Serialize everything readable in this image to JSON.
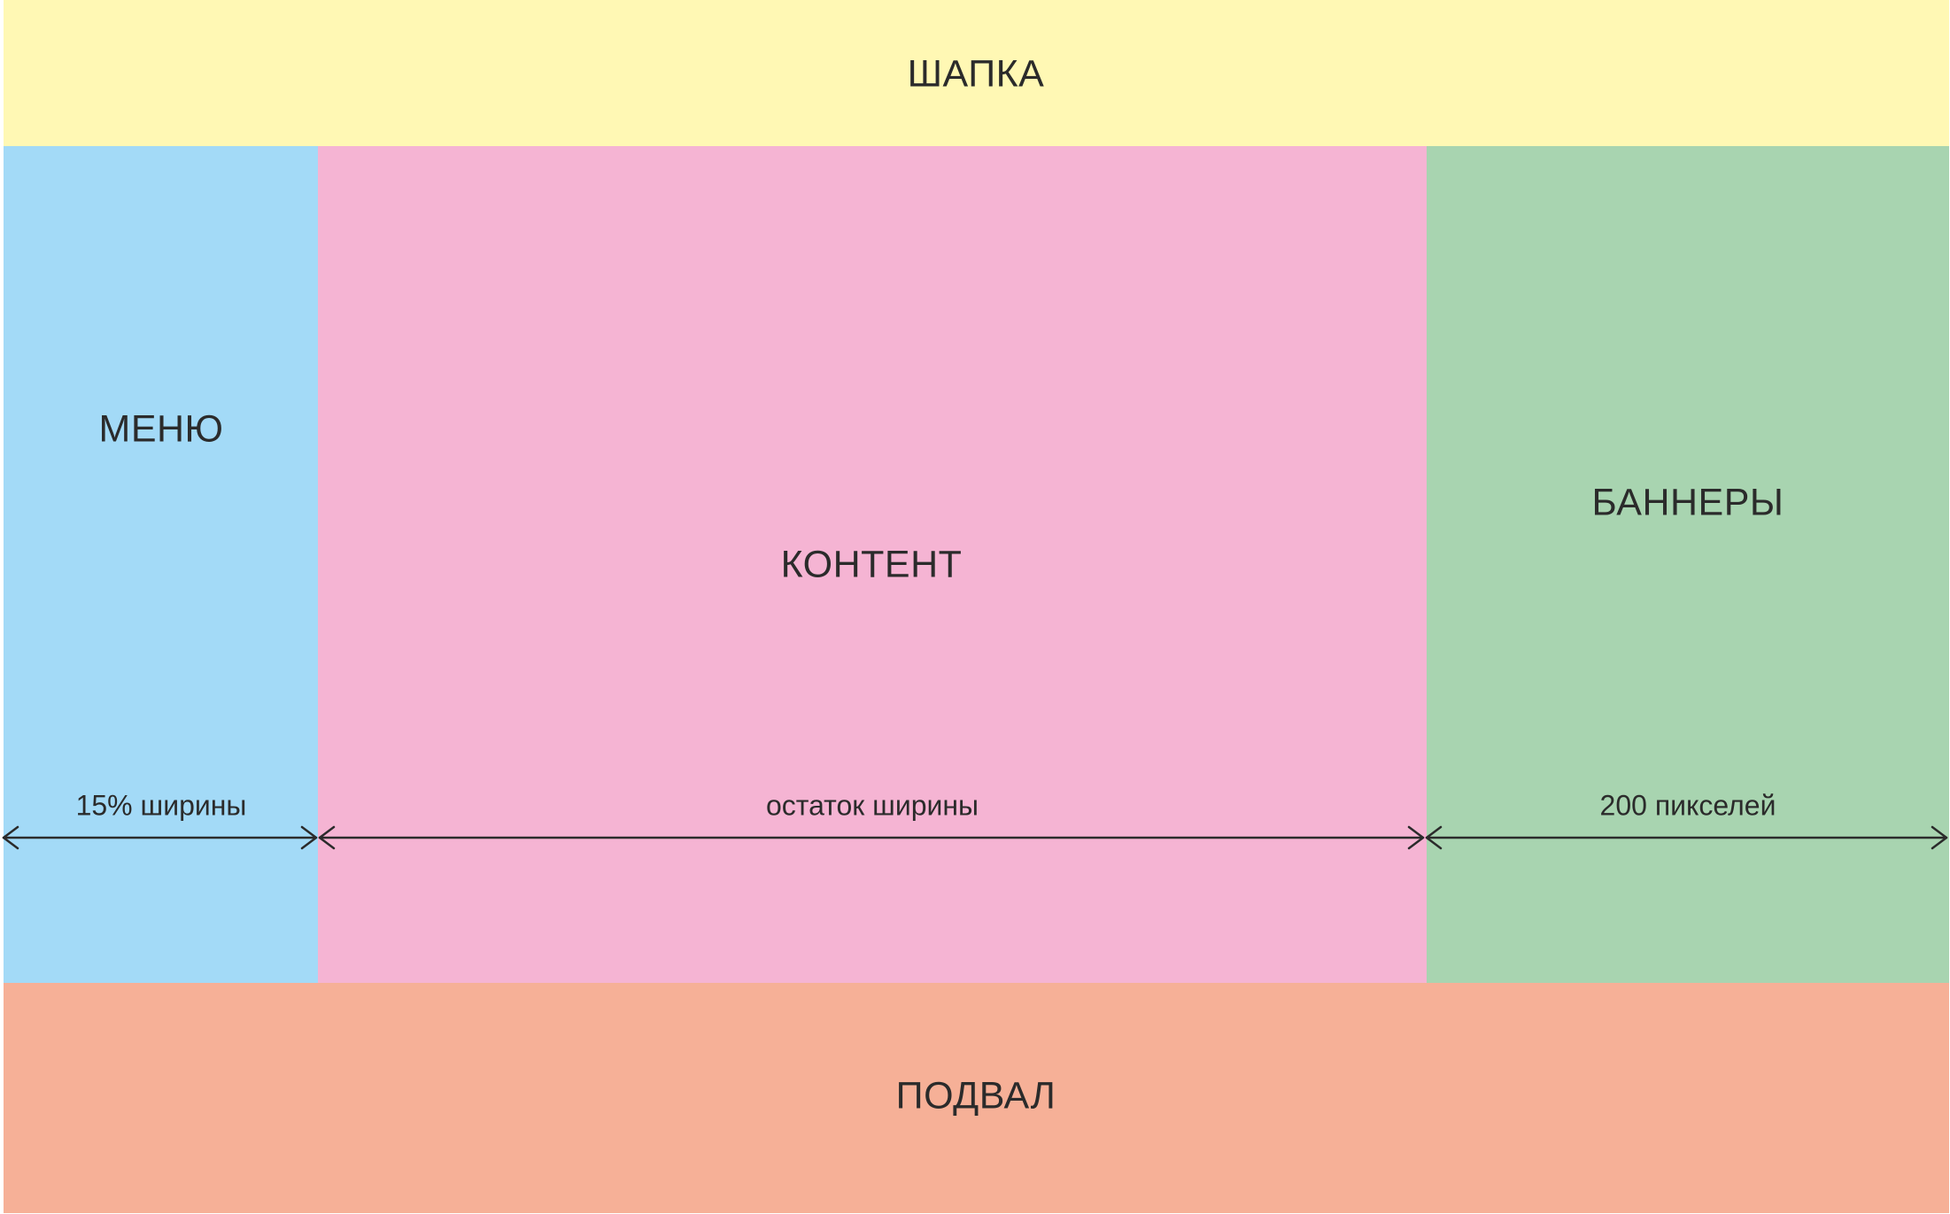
{
  "colors": {
    "header": "#fff8b4",
    "menu": "#a3daf7",
    "content": "#f5b4d3",
    "banners": "#a8d4b0",
    "footer": "#f6b097",
    "text": "#2b2b2b",
    "arrow": "#2b2b2b"
  },
  "header": {
    "label": "ШАПКА"
  },
  "menu": {
    "label": "МЕНЮ",
    "width_note": "15% ширины"
  },
  "content": {
    "label": "КОНТЕНТ",
    "width_note": "остаток ширины"
  },
  "banners": {
    "label": "БАННЕРЫ",
    "width_note": "200 пикселей"
  },
  "footer": {
    "label": "ПОДВАЛ"
  }
}
